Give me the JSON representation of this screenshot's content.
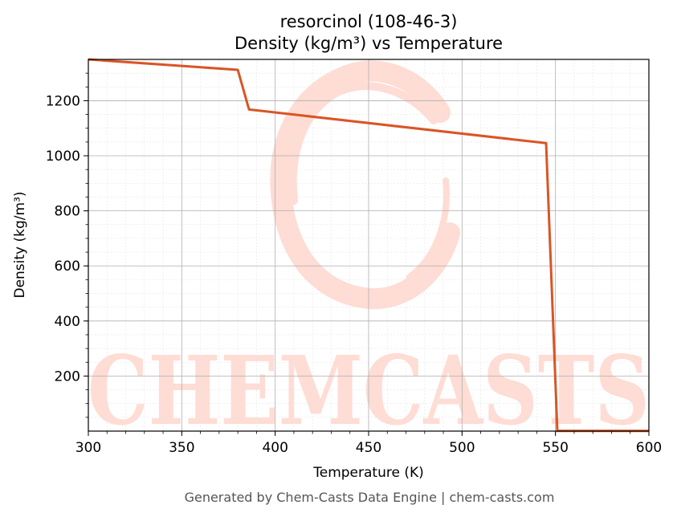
{
  "chart_data": {
    "type": "line",
    "title_line1": "resorcinol (108-46-3)",
    "title_line2": "Density (kg/m³) vs Temperature",
    "xlabel": "Temperature (K)",
    "ylabel": "Density (kg/m³)",
    "xlim": [
      300,
      600
    ],
    "ylim": [
      0,
      1350
    ],
    "x_ticks": [
      300,
      350,
      400,
      450,
      500,
      550,
      600
    ],
    "y_ticks": [
      200,
      400,
      600,
      800,
      1000,
      1200
    ],
    "grid": true,
    "series": [
      {
        "color": "#d95525",
        "x": [
          300,
          380,
          386,
          545,
          551,
          600
        ],
        "y": [
          1350,
          1312,
          1168,
          1046,
          1,
          1
        ]
      }
    ]
  },
  "watermark": {
    "text": "CHEMCASTS",
    "color": "#ffdcd4"
  },
  "footer": "Generated by Chem-Casts Data Engine | chem-casts.com"
}
